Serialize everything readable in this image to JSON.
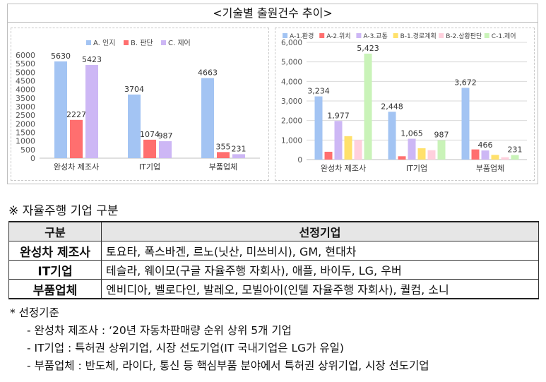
{
  "figure_title": "<기술별 출원건수 추이>",
  "chart_data": [
    {
      "type": "bar",
      "categories": [
        "완성차 제조사",
        "IT기업",
        "부품업체"
      ],
      "series": [
        {
          "name": "A. 인지",
          "color": "#a3c4f3",
          "values": [
            5630,
            3704,
            4663
          ]
        },
        {
          "name": "B. 판단",
          "color": "#ff6f6f",
          "values": [
            2227,
            1074,
            355
          ]
        },
        {
          "name": "C. 제어",
          "color": "#cdb7f5",
          "values": [
            5423,
            987,
            231
          ]
        }
      ],
      "yticks": [
        0,
        500,
        1000,
        1500,
        2000,
        2500,
        3000,
        3500,
        4000,
        4500,
        5000,
        5500,
        6000
      ],
      "ytick_labels": [
        "0",
        "500",
        "1000",
        "1500",
        "2000",
        "2500",
        "3000",
        "3500",
        "4000",
        "4500",
        "5000",
        "5500",
        "6000"
      ],
      "ylim": [
        0,
        6000
      ],
      "grid": false,
      "legend": "top-center",
      "data_labels": true
    },
    {
      "type": "bar",
      "categories": [
        "완성차 제조사",
        "IT기업",
        "부품업체"
      ],
      "series": [
        {
          "name": "A-1.환경",
          "color": "#a3c4f3",
          "values": [
            3234,
            2448,
            3672
          ],
          "labels": [
            "3,234",
            "2,448",
            "3,672"
          ]
        },
        {
          "name": "A-2.위치",
          "color": "#ff6f6f",
          "values": [
            400,
            170,
            520
          ],
          "labels": [
            "",
            "",
            ""
          ]
        },
        {
          "name": "A-3.교통",
          "color": "#cdb7f5",
          "values": [
            1977,
            1065,
            466
          ],
          "labels": [
            "1,977",
            "1,065",
            "466"
          ]
        },
        {
          "name": "B-1.경로계획",
          "color": "#ffe16b",
          "values": [
            1200,
            580,
            240
          ],
          "labels": [
            "",
            "",
            ""
          ]
        },
        {
          "name": "B-2.상황판단",
          "color": "#ffd0dd",
          "values": [
            1000,
            480,
            120
          ],
          "labels": [
            "",
            "",
            ""
          ]
        },
        {
          "name": "C-1.제어",
          "color": "#c9f3b8",
          "values": [
            5423,
            987,
            231
          ],
          "labels": [
            "5,423",
            "987",
            "231"
          ]
        }
      ],
      "yticks": [
        0,
        1000,
        2000,
        3000,
        4000,
        5000,
        6000
      ],
      "ytick_labels": [
        "0",
        "1,000",
        "2,000",
        "3,000",
        "4,000",
        "5,000",
        "6,000"
      ],
      "ylim": [
        0,
        6000
      ],
      "grid": true,
      "legend": "top-center",
      "data_labels": true
    }
  ],
  "section": {
    "title": "※ 자율주행 기업 구분"
  },
  "table": {
    "headers": [
      "구분",
      "선정기업"
    ],
    "rows": [
      {
        "category": "완성차 제조사",
        "firms": "토요타, 폭스바겐, 르노(닛산, 미쓰비시), GM, 현대차"
      },
      {
        "category": "IT기업",
        "firms": "테슬라, 웨이모(구글 자율주행 자회사), 애플, 바이두, LG, 우버"
      },
      {
        "category": "부품업체",
        "firms": "엔비디아, 벨로다인, 발레오, 모빌아이(인텔 자율주행 자회사), 퀄컴, 소니"
      }
    ]
  },
  "criteria": {
    "title": "* 선정기준",
    "items": [
      "- 완성차 제조사 : ‘20년 자동차판매량 순위 상위 5개 기업",
      "- IT기업 : 특허권 상위기업, 시장 선도기업(IT 국내기업은 LG가 유일)",
      "- 부품업체 : 반도체, 라이다, 통신 등 핵심부품 분야에서 특허권 상위기업, 시장 선도기업"
    ]
  }
}
